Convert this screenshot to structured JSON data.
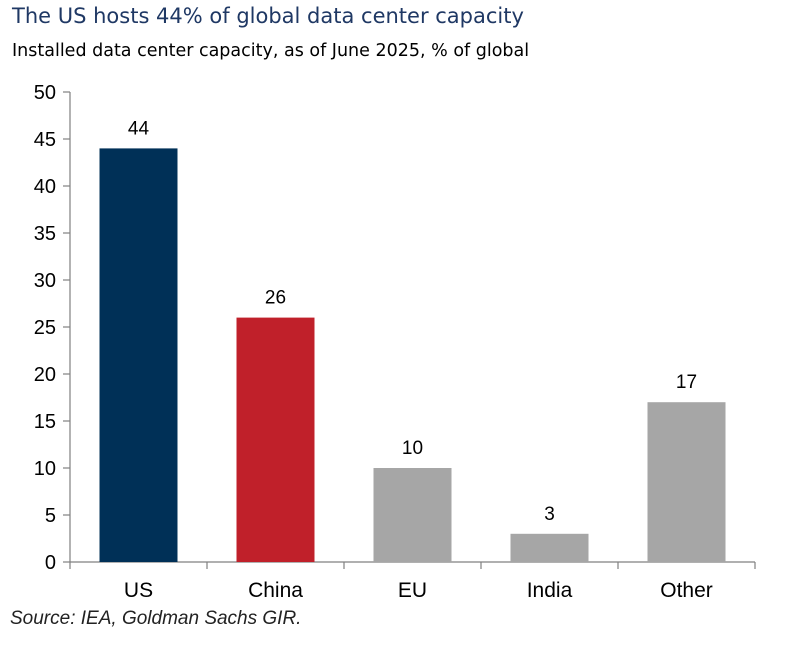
{
  "title": "The US hosts 44% of global data center capacity",
  "subtitle": "Installed data center capacity, as of June 2025, % of global",
  "source": "Source: IEA, Goldman Sachs GIR.",
  "colors": {
    "us": "#003057",
    "china": "#c0202a",
    "other": "#a6a6a6",
    "axis": "#808080"
  },
  "chart_data": {
    "type": "bar",
    "title": "The US hosts 44% of global data center capacity",
    "subtitle": "Installed data center capacity, as of June 2025, % of global",
    "categories": [
      "US",
      "China",
      "EU",
      "India",
      "Other"
    ],
    "values": [
      44,
      26,
      10,
      3,
      17
    ],
    "data_labels": [
      "44",
      "26",
      "10",
      "3",
      "17"
    ],
    "bar_colors": [
      "#003057",
      "#c0202a",
      "#a6a6a6",
      "#a6a6a6",
      "#a6a6a6"
    ],
    "ylim": [
      0,
      50
    ],
    "yticks": [
      0,
      5,
      10,
      15,
      20,
      25,
      30,
      35,
      40,
      45,
      50
    ],
    "xlabel": "",
    "ylabel": "",
    "grid": false,
    "legend": "none"
  }
}
